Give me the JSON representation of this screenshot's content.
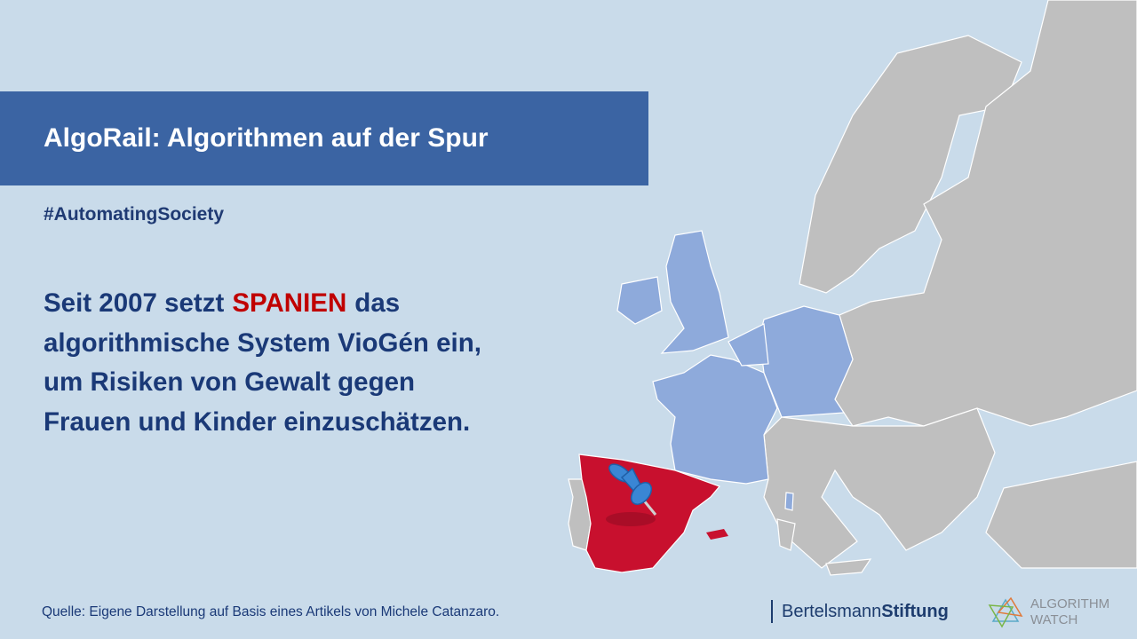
{
  "header": {
    "title": "AlgoRail: Algorithmen auf der Spur"
  },
  "hashtag": "#AutomatingSociety",
  "body": {
    "first_line": [
      "Seit 2007 setzt",
      "SPANIEN",
      "das"
    ],
    "lines": [
      "algorithmische System VioGén ein,",
      "um Risiken von Gewalt gegen",
      "Frauen und Kinder einzuschätzen."
    ]
  },
  "source": "Quelle: Eigene Darstellung auf Basis eines Artikels von Michele Catanzaro.",
  "logos": {
    "bertelsmann": [
      "Bertelsmann",
      "Stiftung"
    ],
    "algorithmwatch": [
      "ALGORITHM",
      "WATCH"
    ]
  }
}
